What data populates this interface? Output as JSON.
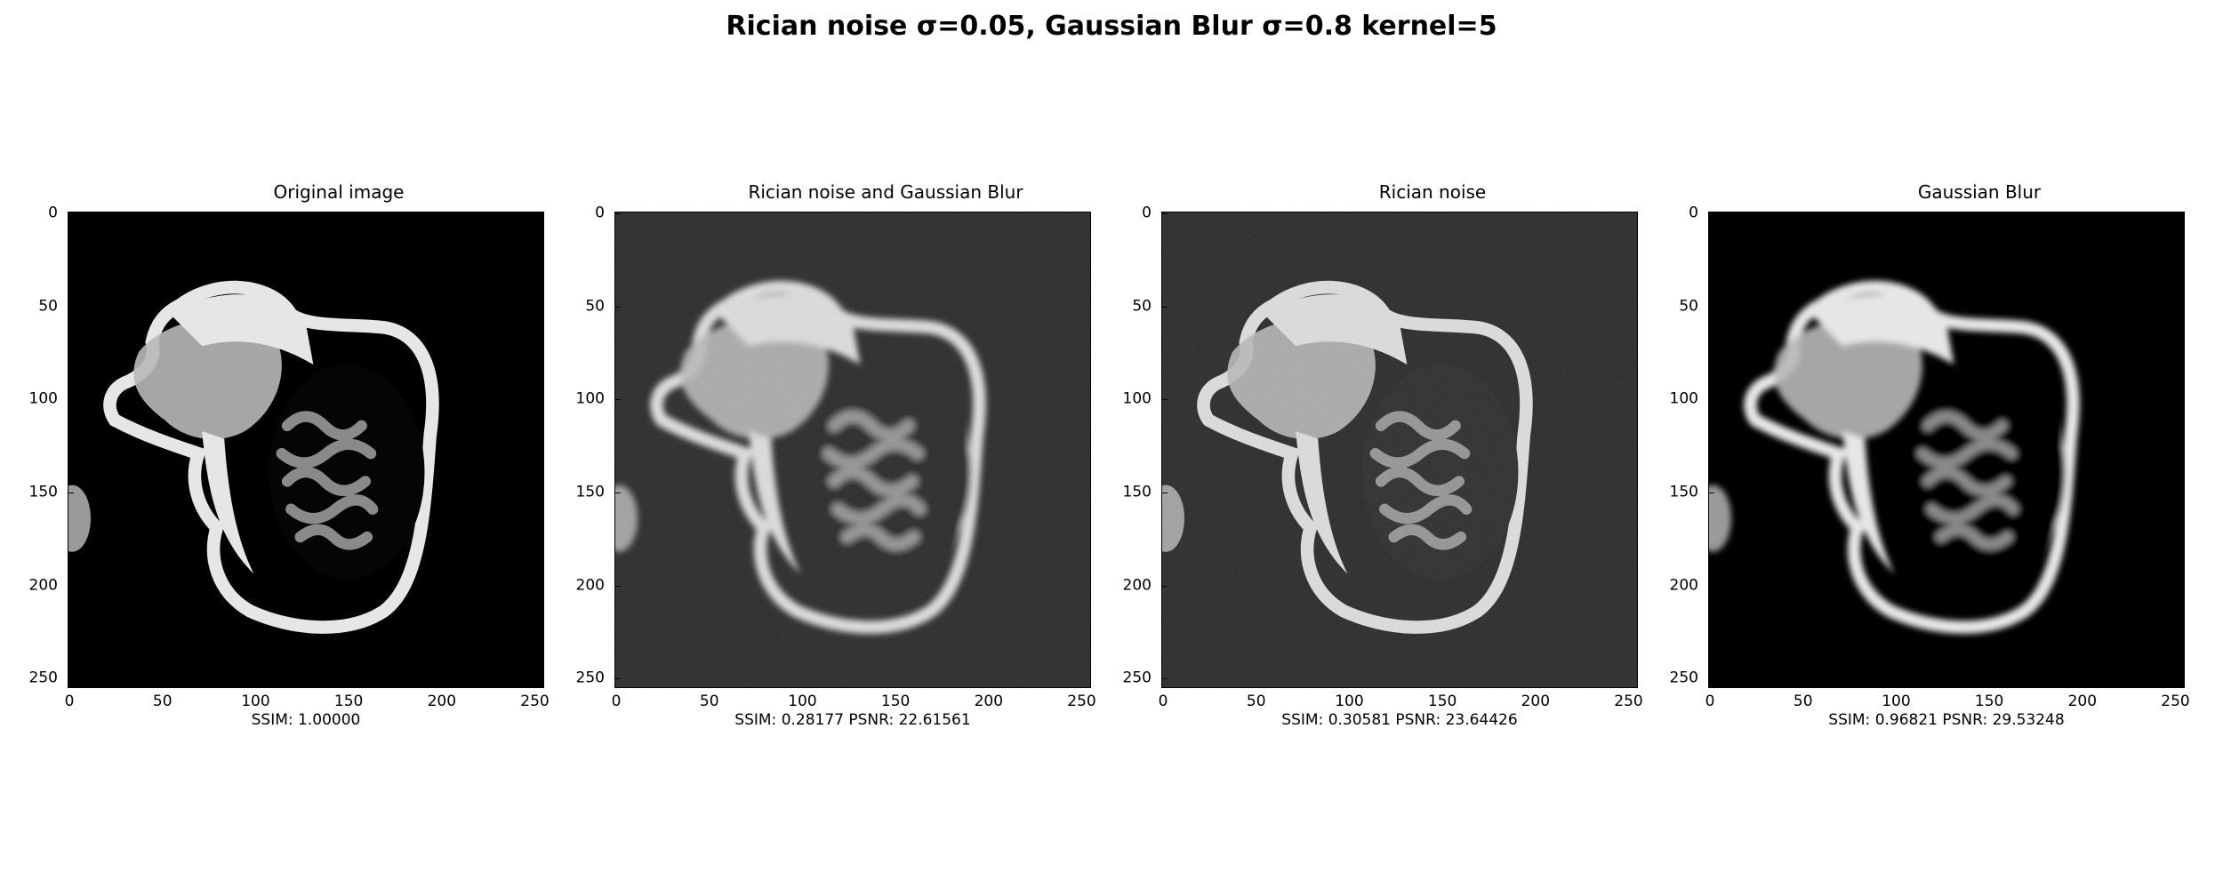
{
  "figure": {
    "suptitle": "Rician noise σ=0.05, Gaussian Blur σ=0.8 kernel=5"
  },
  "axis": {
    "xticks": [
      "0",
      "50",
      "100",
      "150",
      "200",
      "250"
    ],
    "yticks": [
      "0",
      "50",
      "100",
      "150",
      "200",
      "250"
    ]
  },
  "panels": [
    {
      "title": "Original image",
      "caption": "SSIM: 1.00000",
      "noise": false,
      "blur": false
    },
    {
      "title": "Rician noise and Gaussian Blur",
      "caption": "SSIM: 0.28177 PSNR: 22.61561",
      "noise": true,
      "blur": true
    },
    {
      "title": "Rician noise",
      "caption": "SSIM: 0.30581 PSNR: 23.64426",
      "noise": true,
      "blur": false
    },
    {
      "title": "Gaussian Blur",
      "caption": "SSIM: 0.96821 PSNR: 29.53248",
      "noise": false,
      "blur": true
    }
  ],
  "colors": {
    "background": "#ffffff",
    "image_bg": "#000000",
    "tissue": "#e6e6e6",
    "brain": "#8a8a8a"
  }
}
